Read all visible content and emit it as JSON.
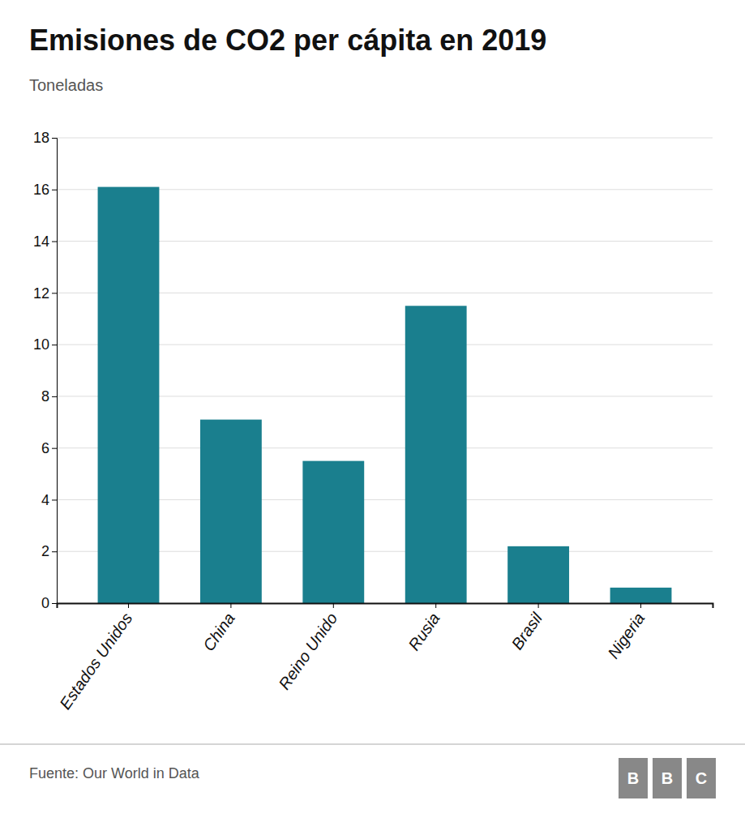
{
  "chart_data": {
    "type": "bar",
    "title": "Emisiones de CO2 per cápita en 2019",
    "subtitle": "Toneladas",
    "categories": [
      "Estados Unidos",
      "China",
      "Reino Unido",
      "Rusia",
      "Brasil",
      "Nigeria"
    ],
    "values": [
      16.1,
      7.1,
      5.5,
      11.5,
      2.2,
      0.6
    ],
    "color": "#1a7f8e",
    "ylim": [
      0,
      18
    ],
    "yticks": [
      0,
      2,
      4,
      6,
      8,
      10,
      12,
      14,
      16,
      18
    ],
    "grid": true,
    "source": "Fuente: Our World in Data",
    "logo": [
      "B",
      "B",
      "C"
    ]
  }
}
